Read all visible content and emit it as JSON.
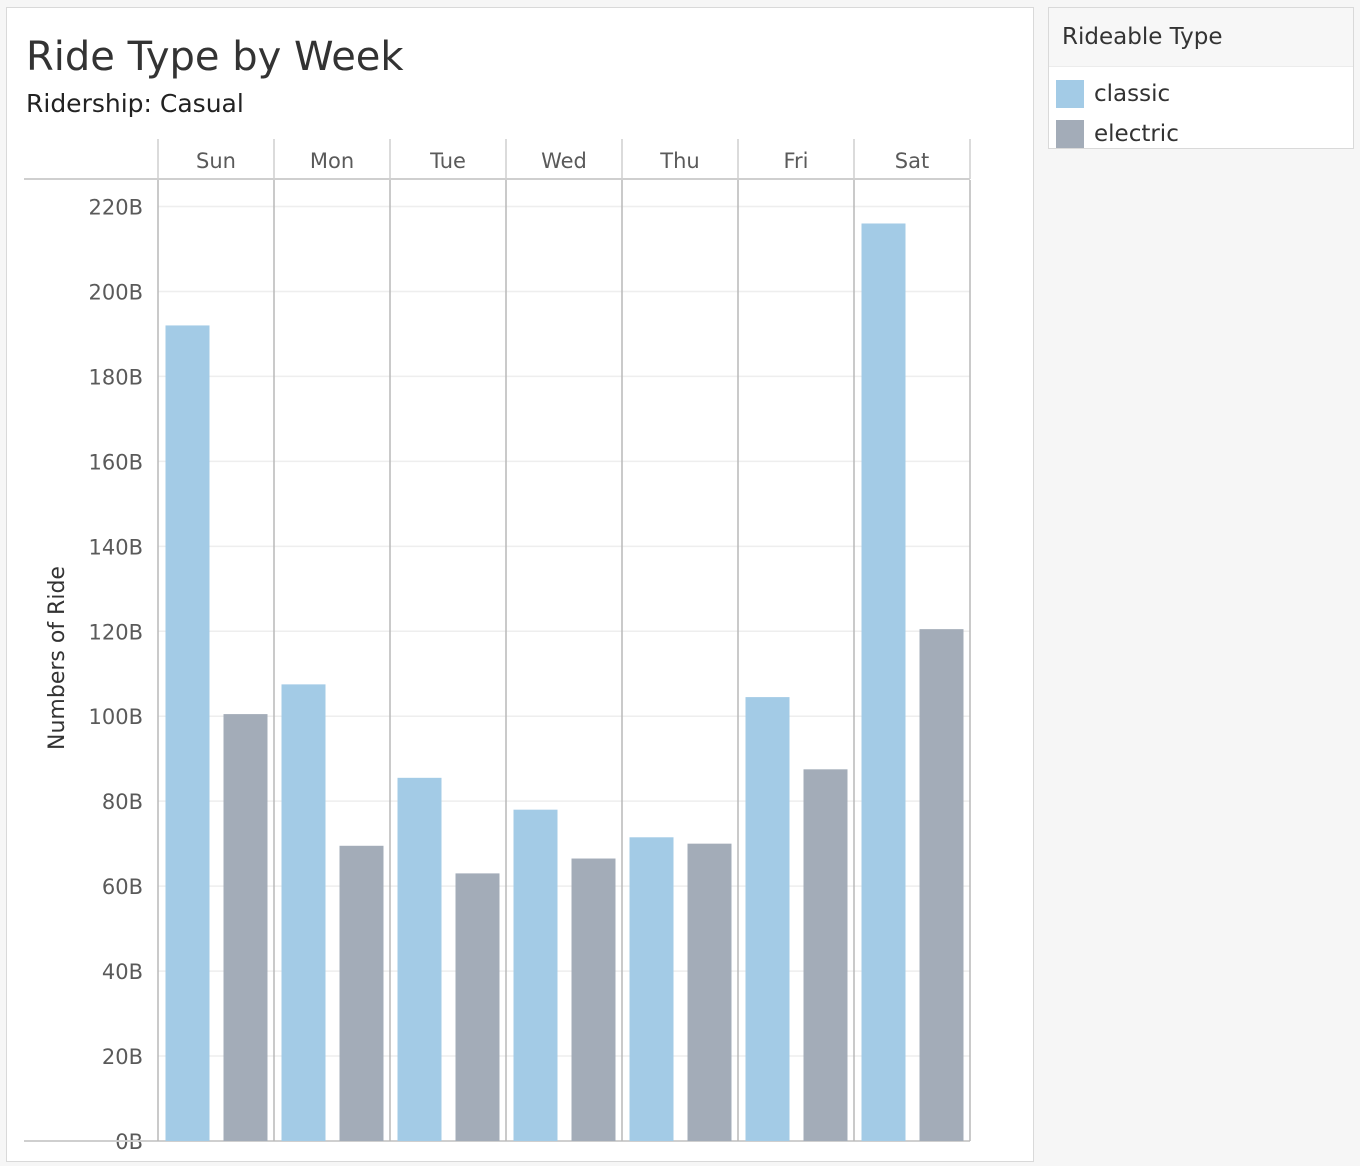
{
  "chart_data": {
    "type": "bar",
    "title": "Ride Type by Week",
    "subtitle": "Ridership: Casual",
    "ylabel": "Numbers of Ride",
    "xlabel": "",
    "categories": [
      "Sun",
      "Mon",
      "Tue",
      "Wed",
      "Thu",
      "Fri",
      "Sat"
    ],
    "series": [
      {
        "name": "classic",
        "color": "#a3cbe6",
        "values": [
          192,
          107.5,
          85.5,
          78,
          71.5,
          104.5,
          216
        ]
      },
      {
        "name": "electric",
        "color": "#a3acb8",
        "values": [
          100.5,
          69.5,
          63,
          66.5,
          70,
          87.5,
          120.5
        ]
      }
    ],
    "ylim": [
      0,
      220
    ],
    "yticks": [
      0,
      20,
      40,
      60,
      80,
      100,
      120,
      140,
      160,
      180,
      200,
      220
    ],
    "ytick_labels": [
      "0B",
      "20B",
      "40B",
      "60B",
      "80B",
      "100B",
      "120B",
      "140B",
      "160B",
      "180B",
      "200B",
      "220B"
    ],
    "grid": true,
    "legend_position": "right"
  },
  "legend": {
    "title": "Rideable Type",
    "items": [
      {
        "label": "classic",
        "color": "#a3cbe6"
      },
      {
        "label": "electric",
        "color": "#a3acb8"
      }
    ]
  }
}
